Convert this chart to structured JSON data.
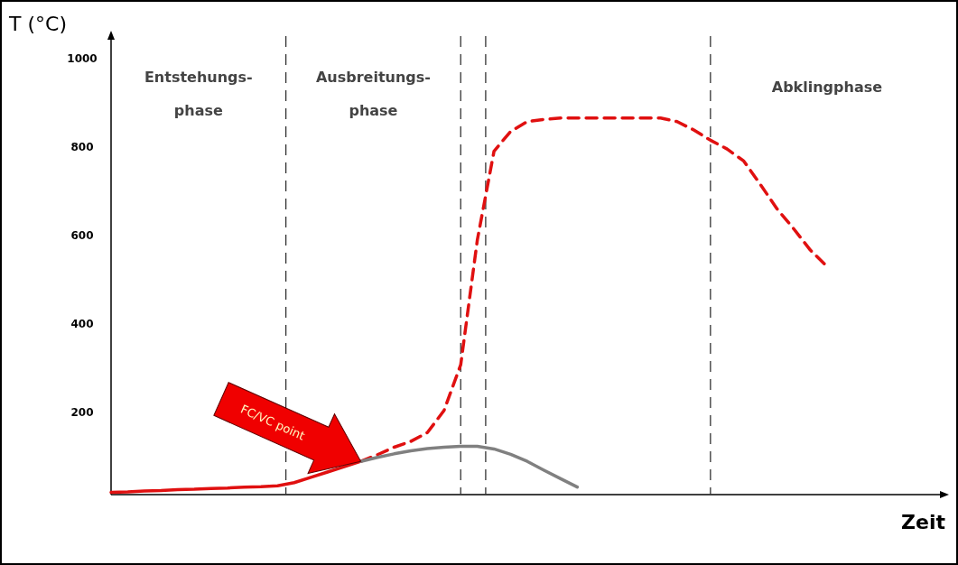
{
  "chart_data": {
    "type": "line",
    "xlabel": "Zeit",
    "ylabel": "T (°C)",
    "ylim": [
      15,
      1050
    ],
    "yticks": [
      200,
      400,
      600,
      800,
      1000
    ],
    "tick_labels": "y",
    "grid": false,
    "categories": [
      null,
      null,
      null,
      null,
      null,
      null,
      null,
      null,
      null,
      null,
      null,
      null,
      null,
      null,
      null,
      null,
      null,
      null,
      null,
      null,
      null,
      null,
      null,
      null,
      null,
      null,
      null,
      null,
      null,
      null,
      null,
      null,
      null,
      null,
      null,
      null,
      null,
      null,
      null,
      null,
      null,
      null,
      null,
      null,
      null,
      null,
      null,
      null,
      null,
      null,
      null
    ],
    "series": [
      {
        "color": "#e01010",
        "line_style": "solid",
        "values": [
          20,
          21,
          23,
          24,
          26,
          27,
          29,
          30,
          32,
          33,
          35,
          42,
          54,
          66,
          78,
          90,
          null,
          null,
          null,
          null,
          null,
          null,
          null,
          null,
          null,
          null,
          null,
          null,
          null,
          null,
          null,
          null,
          null,
          null,
          null,
          null,
          null,
          null,
          null,
          null,
          null,
          null,
          null,
          null,
          null,
          null,
          null,
          null,
          null,
          null,
          null
        ]
      },
      {
        "color": "#e01010",
        "line_style": "dashed",
        "values": [
          null,
          null,
          null,
          null,
          null,
          null,
          null,
          null,
          null,
          null,
          null,
          null,
          null,
          null,
          null,
          90,
          105,
          122,
          135,
          155,
          205,
          308,
          590,
          790,
          835,
          857,
          862,
          865,
          865,
          865,
          865,
          865,
          865,
          865,
          857,
          838,
          815,
          795,
          768,
          715,
          660,
          615,
          567,
          530,
          null,
          null,
          null,
          null,
          null,
          null,
          null
        ]
      },
      {
        "color": "#808080",
        "line_style": "solid",
        "values": [
          null,
          null,
          null,
          null,
          null,
          null,
          null,
          null,
          null,
          null,
          null,
          null,
          null,
          null,
          null,
          90,
          99,
          107,
          114,
          119,
          122,
          124,
          124,
          118,
          106,
          90,
          70,
          51,
          32,
          null,
          null,
          null,
          null,
          null,
          null,
          null,
          null,
          null,
          null,
          null,
          null,
          null,
          null,
          null,
          null,
          null,
          null,
          null,
          null,
          null,
          null
        ]
      }
    ],
    "annotations": [
      "Entstehungs-\nphase",
      "Ausbreitungs-\nphase",
      "Abklingphase",
      "FC/VC point"
    ]
  }
}
